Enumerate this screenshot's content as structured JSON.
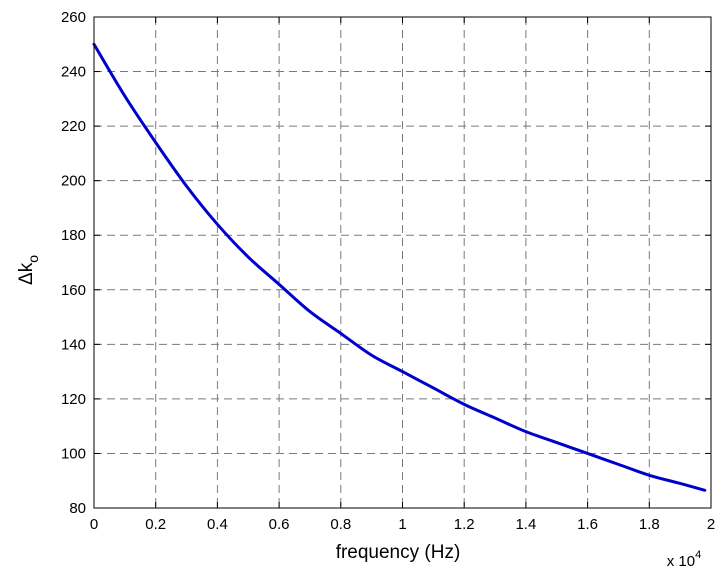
{
  "chart_data": {
    "type": "line",
    "title": "",
    "xlabel": "frequency (Hz)",
    "ylabel": {
      "base": "Δk",
      "subscript": "o"
    },
    "x_multiplier": {
      "prefix": "x 10",
      "exponent": "4"
    },
    "xlim": [
      0,
      2.0
    ],
    "ylim": [
      80,
      260
    ],
    "grid": true,
    "x_ticks": [
      "0",
      "0.2",
      "0.4",
      "0.6",
      "0.8",
      "1",
      "1.2",
      "1.4",
      "1.6",
      "1.8",
      "2"
    ],
    "y_ticks": [
      "80",
      "100",
      "120",
      "140",
      "160",
      "180",
      "200",
      "220",
      "240",
      "260"
    ],
    "series": [
      {
        "color": "#0000cc",
        "x": [
          0,
          0.1,
          0.2,
          0.3,
          0.4,
          0.5,
          0.6,
          0.7,
          0.8,
          0.9,
          1.0,
          1.1,
          1.2,
          1.3,
          1.4,
          1.5,
          1.6,
          1.7,
          1.8,
          1.9,
          1.98
        ],
        "y": [
          250,
          231,
          214,
          198,
          184,
          172,
          162,
          152,
          144,
          136,
          130,
          124,
          118,
          113,
          108,
          104,
          100,
          96,
          92,
          89,
          86.5
        ]
      }
    ]
  }
}
